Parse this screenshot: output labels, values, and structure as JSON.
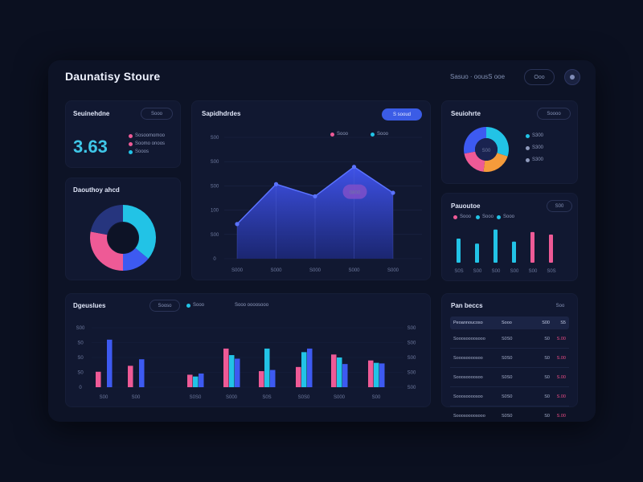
{
  "header": {
    "title": "Daunatisy Stoure",
    "meta_text": "Sasuo · oousS ooe",
    "pill_label": "Ooo"
  },
  "colors": {
    "cyan": "#22c3e6",
    "blue": "#3d5af1",
    "pink": "#ee5a96",
    "orange": "#f59b3b",
    "navy": "#26357e"
  },
  "kpi_card": {
    "title": "Seuinehdne",
    "pill": "Sooo",
    "value": "3.63",
    "legend": [
      "Sosoomomoo",
      "Soomo onoos",
      "Sooos"
    ]
  },
  "donut_card": {
    "title": "Daouthoy ahcd"
  },
  "area_card": {
    "title": "Sapidhdrdes",
    "button": "S sooud",
    "legend": [
      "Sooo",
      "Sooo"
    ],
    "tooltip": "0800"
  },
  "pie_card": {
    "title": "Seuiohrte",
    "pill": "Soooo",
    "labels": [
      "S300",
      "S300",
      "S300"
    ],
    "center": "S00"
  },
  "mini_bar_card": {
    "title": "Pauoutoe",
    "pill": "S00",
    "legend": [
      "Sooo",
      "Sooo",
      "Sooo"
    ]
  },
  "bar_card": {
    "title": "Dgeuslues",
    "pill": "Sooso",
    "legend": [
      "Sooo",
      "Sooo oooosooo"
    ]
  },
  "table_card": {
    "title": "Pan beccs",
    "pill": "Soo",
    "columns": [
      "Peoannoucoso",
      "Sooo",
      "S00",
      "S5"
    ],
    "rows": [
      [
        "Sooosoooosooo",
        "S0S0",
        "S0",
        "S.00"
      ],
      [
        "Sooosoooosoo",
        "S0S0",
        "S0",
        "S.00"
      ],
      [
        "Sooosoooosoo",
        "S0S0",
        "S0",
        "S.00"
      ],
      [
        "Sooosoooosoo",
        "S0S0",
        "S0",
        "S.00"
      ],
      [
        "Sooosoooosooo",
        "S0S0",
        "S0",
        "S.00"
      ]
    ]
  },
  "chart_data": [
    {
      "type": "pie",
      "name_ref": "donut_card",
      "slices": [
        {
          "value": 36,
          "color": "#22c3e6"
        },
        {
          "value": 14,
          "color": "#3d5af1"
        },
        {
          "value": 28,
          "color": "#ee5a96"
        },
        {
          "value": 22,
          "color": "#26357e"
        }
      ]
    },
    {
      "type": "area",
      "name_ref": "area_card",
      "ytick_labels": [
        "S00",
        "S00",
        "S00",
        "100",
        "S00",
        "0"
      ],
      "xtick_labels": [
        "S000",
        "S000",
        "S000",
        "S000",
        "S000"
      ],
      "values": [
        2,
        4.3,
        3.6,
        5.3,
        3.8
      ],
      "ylim": [
        0,
        7
      ]
    },
    {
      "type": "pie",
      "name_ref": "pie_card",
      "slices": [
        {
          "value": 30,
          "color": "#22c3e6"
        },
        {
          "value": 22,
          "color": "#f59b3b"
        },
        {
          "value": 20,
          "color": "#ee5a96"
        },
        {
          "value": 28,
          "color": "#3d5af1"
        }
      ]
    },
    {
      "type": "bar",
      "name_ref": "mini_bar_card",
      "categories": [
        "S0S",
        "S00",
        "S00",
        "S00",
        "S00",
        "S0S"
      ],
      "values": [
        4.8,
        3.8,
        6.6,
        4.2,
        6.1,
        5.6
      ],
      "colors": [
        "#22c3e6",
        "#22c3e6",
        "#22c3e6",
        "#22c3e6",
        "#ee5a96",
        "#ee5a96"
      ],
      "ylim": [
        0,
        8
      ]
    },
    {
      "type": "bar",
      "name_ref": "bar_card",
      "categories": [
        "S00",
        "S00",
        "S0S0",
        "S000",
        "S0S",
        "S0S0",
        "S000",
        "S00"
      ],
      "ytick_labels": [
        "S00",
        "S0",
        "S0",
        "S0",
        "0"
      ],
      "y2tick_labels": [
        "S00",
        "S00",
        "S00",
        "S00",
        "S00"
      ],
      "series": [
        {
          "color": "#ee5a96",
          "values": [
            2.6,
            3.6,
            2.1,
            6.5,
            2.7,
            3.4,
            5.5,
            4.5
          ]
        },
        {
          "color": "#22c3e6",
          "values": [
            0,
            0,
            1.8,
            5.4,
            6.5,
            5.9,
            5.0,
            4.1
          ]
        },
        {
          "color": "#3d5af1",
          "values": [
            8.0,
            4.7,
            2.3,
            4.8,
            2.9,
            6.5,
            3.9,
            4.0
          ]
        }
      ],
      "ylim": [
        0,
        10
      ]
    }
  ]
}
